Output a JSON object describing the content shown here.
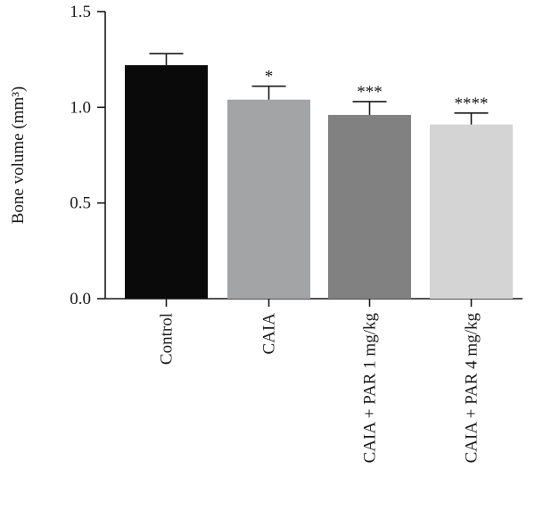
{
  "chart_data": {
    "type": "bar",
    "categories": [
      "Control",
      "CAIA",
      "CAIA + PAR 1 mg/kg",
      "CAIA + PAR 4 mg/kg"
    ],
    "values": [
      1.22,
      1.04,
      0.96,
      0.91
    ],
    "errors": [
      0.06,
      0.07,
      0.07,
      0.06
    ],
    "significance": [
      "",
      "*",
      "***",
      "****"
    ],
    "bar_colors": [
      "#0a0a0a",
      "#a3a4a6",
      "#808180",
      "#d4d4d4"
    ],
    "title": "",
    "xlabel": "",
    "ylabel": "Bone volume (mm³)",
    "ylim": [
      0,
      1.5
    ],
    "yticks": [
      0.0,
      0.5,
      1.0,
      1.5
    ],
    "ytick_labels": [
      "0.0",
      "0.5",
      "1.0",
      "1.5"
    ],
    "grid": false,
    "legend": "none"
  }
}
